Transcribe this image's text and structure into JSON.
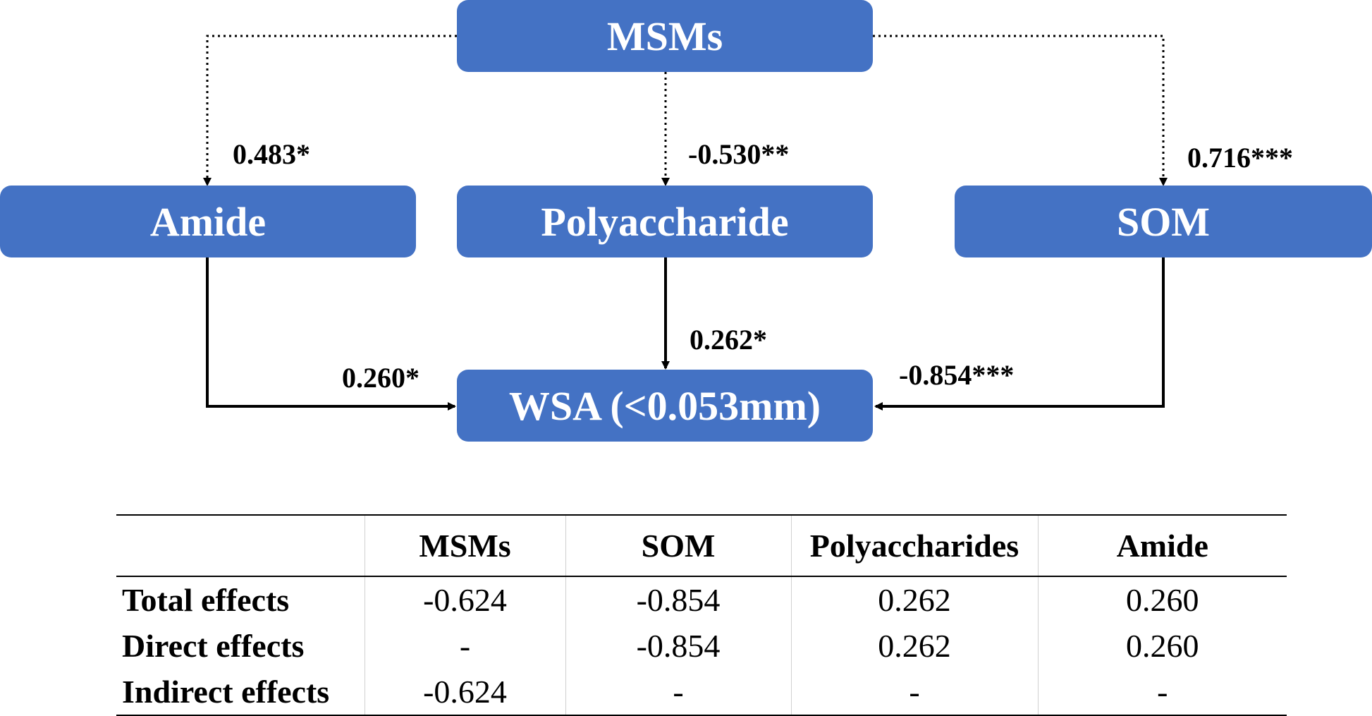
{
  "diagram": {
    "node_color": "#4472C4",
    "nodes": {
      "msms": "MSMs",
      "amide": "Amide",
      "polysaccharide": "Polyaccharide",
      "som": "SOM",
      "wsa": "WSA (<0.053mm)"
    },
    "paths": {
      "msms_amide": "0.483*",
      "msms_polysaccharide": "-0.530**",
      "msms_som": "0.716***",
      "amide_wsa": "0.260*",
      "polysaccharide_wsa": "0.262*",
      "som_wsa": "-0.854***"
    }
  },
  "effects_table": {
    "columns": [
      "",
      "MSMs",
      "SOM",
      "Polyaccharides",
      "Amide"
    ],
    "rows": [
      {
        "label": "Total effects",
        "values": [
          "-0.624",
          "-0.854",
          "0.262",
          "0.260"
        ]
      },
      {
        "label": "Direct effects",
        "values": [
          "-",
          "-0.854",
          "0.262",
          "0.260"
        ]
      },
      {
        "label": "Indirect effects",
        "values": [
          "-0.624",
          "-",
          "-",
          "-"
        ]
      }
    ]
  }
}
